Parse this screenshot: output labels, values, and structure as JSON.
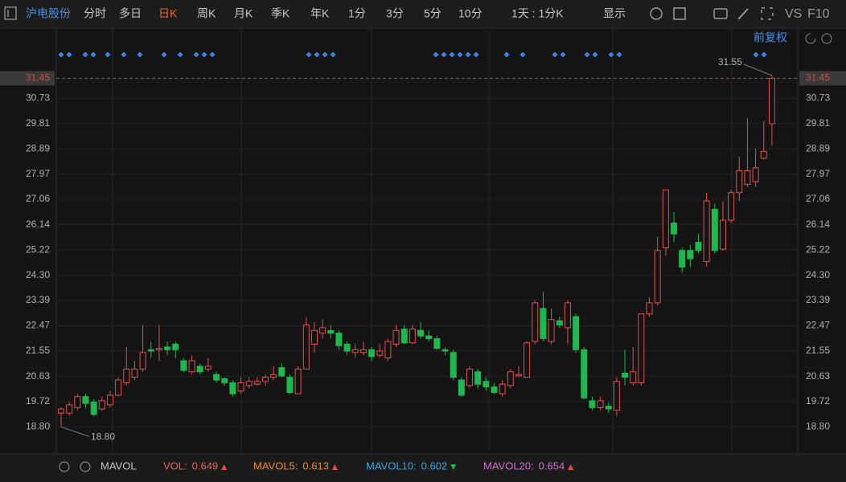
{
  "toolbar": {
    "stock_name": "沪电股份",
    "periods": [
      "分时",
      "多日",
      "日K",
      "周K",
      "月K",
      "季K",
      "年K",
      "1分",
      "3分",
      "5分",
      "10分"
    ],
    "active_index": 2,
    "range": "1天 : 1分K",
    "display": "显示",
    "vs": "VS",
    "f10": "F10"
  },
  "adjust": "前复权",
  "chart_data": {
    "type": "candlestick",
    "open": [
      19.3,
      19.3,
      19.5,
      19.9,
      19.7,
      19.45,
      19.6,
      19.95,
      20.4,
      20.6,
      20.9,
      21.6,
      21.6,
      21.7,
      21.8,
      21.2,
      20.8,
      21.0,
      20.9,
      20.7,
      20.55,
      20.4,
      20.1,
      20.3,
      20.35,
      20.45,
      20.6,
      20.95,
      20.6,
      20.0,
      20.9,
      21.8,
      22.2,
      22.3,
      22.2,
      21.8,
      21.5,
      21.5,
      21.6,
      21.4,
      21.3,
      21.8,
      22.35,
      21.85,
      22.3,
      22.1,
      22.0,
      21.6,
      21.5,
      20.5,
      20.3,
      20.8,
      20.45,
      20.25,
      20.0,
      20.3,
      20.65,
      20.6,
      21.9,
      23.1,
      21.9,
      22.65,
      22.4,
      22.8,
      21.6,
      19.75,
      19.5,
      19.55,
      19.4,
      20.75,
      20.4,
      20.4,
      22.9,
      23.3,
      25.3,
      26.2,
      25.2,
      25.2,
      25.5,
      24.8,
      26.7,
      25.25,
      26.3,
      27.3,
      27.6,
      27.7,
      28.55,
      29.8
    ],
    "high": [
      19.5,
      19.7,
      20.0,
      20.0,
      19.8,
      19.9,
      20.1,
      20.6,
      21.7,
      21.2,
      22.5,
      21.9,
      22.5,
      21.9,
      21.9,
      21.3,
      21.4,
      21.1,
      21.3,
      20.8,
      20.6,
      20.5,
      20.6,
      20.6,
      20.6,
      20.7,
      21.0,
      21.1,
      20.7,
      21.0,
      22.8,
      22.6,
      22.7,
      22.5,
      22.3,
      21.9,
      21.8,
      21.9,
      21.7,
      21.8,
      22.0,
      22.5,
      22.5,
      22.5,
      22.6,
      22.3,
      22.1,
      21.7,
      21.6,
      20.6,
      21.0,
      20.9,
      20.6,
      20.4,
      20.5,
      20.9,
      21.0,
      21.9,
      23.4,
      23.7,
      23.1,
      22.8,
      23.4,
      22.9,
      21.7,
      19.9,
      19.9,
      19.7,
      20.6,
      21.6,
      21.7,
      22.9,
      23.5,
      25.7,
      27.4,
      26.6,
      25.3,
      25.4,
      25.8,
      27.3,
      26.9,
      27.0,
      27.4,
      28.6,
      30.0,
      28.9,
      29.9,
      31.55
    ],
    "low": [
      18.8,
      19.2,
      19.4,
      19.5,
      19.2,
      19.4,
      19.5,
      19.9,
      20.3,
      20.5,
      20.8,
      21.3,
      21.2,
      21.4,
      21.3,
      20.8,
      20.7,
      20.7,
      20.8,
      20.4,
      20.3,
      19.9,
      20.0,
      20.2,
      20.3,
      20.3,
      20.5,
      20.6,
      20.0,
      20.0,
      20.9,
      21.5,
      22.0,
      22.0,
      21.6,
      21.4,
      21.3,
      21.4,
      21.2,
      21.3,
      21.2,
      21.7,
      21.8,
      21.8,
      22.0,
      21.9,
      21.6,
      21.4,
      20.5,
      19.9,
      20.2,
      20.2,
      20.1,
      20.0,
      19.9,
      20.2,
      20.6,
      20.6,
      21.8,
      21.9,
      21.8,
      22.4,
      21.8,
      21.5,
      19.8,
      19.4,
      19.4,
      19.3,
      19.2,
      20.3,
      20.3,
      20.3,
      22.8,
      23.2,
      25.0,
      25.5,
      24.4,
      24.6,
      25.1,
      24.6,
      25.1,
      25.2,
      26.2,
      27.0,
      27.5,
      27.5,
      28.5,
      29.0
    ],
    "close": [
      19.45,
      19.6,
      19.9,
      19.65,
      19.25,
      19.75,
      19.95,
      20.5,
      20.9,
      20.9,
      21.5,
      21.55,
      21.65,
      21.6,
      21.6,
      20.85,
      21.2,
      20.8,
      21.0,
      20.5,
      20.4,
      20.0,
      20.4,
      20.45,
      20.45,
      20.6,
      20.7,
      20.65,
      20.05,
      20.9,
      22.5,
      22.3,
      22.4,
      22.2,
      21.75,
      21.55,
      21.6,
      21.6,
      21.35,
      21.55,
      21.9,
      22.3,
      21.85,
      22.35,
      22.1,
      22.0,
      21.65,
      21.55,
      20.6,
      19.95,
      20.9,
      20.35,
      20.25,
      20.05,
      20.35,
      20.8,
      20.7,
      21.85,
      23.3,
      22.0,
      22.7,
      22.5,
      23.3,
      21.6,
      19.85,
      19.5,
      19.75,
      19.45,
      20.45,
      20.6,
      20.8,
      22.9,
      23.3,
      25.2,
      27.4,
      25.8,
      24.6,
      24.9,
      25.2,
      27.0,
      25.2,
      26.3,
      27.3,
      28.1,
      28.1,
      28.2,
      28.8,
      31.45
    ],
    "ylim": [
      17.82,
      33.27
    ],
    "yticks": [
      {
        "value": 18.8,
        "label": "18.80"
      },
      19.72,
      20.63,
      21.55,
      22.47,
      23.39,
      {
        "value": 24.3,
        "label": "24.30"
      },
      25.22,
      26.14,
      27.06,
      27.97,
      28.89,
      29.81,
      30.73
    ],
    "current_price": 31.45,
    "high_annotation": 31.55,
    "low_annotation": {
      "value": 18.8,
      "label": "18.80"
    },
    "up_color": "#e0504d",
    "down_color": "#1fb84f",
    "price_line_color": "#c8503f"
  },
  "indicator": {
    "name": "MAVOL",
    "items": [
      {
        "label": "VOL:",
        "value": 0.649,
        "color": "#e8625c",
        "trend": "up"
      },
      {
        "label": "MAVOL5:",
        "value": 0.613,
        "color": "#f08a24",
        "trend": "up"
      },
      {
        "label": "MAVOL10:",
        "value": 0.602,
        "color": "#2ea7e0",
        "trend": "down"
      },
      {
        "label": "MAVOL20:",
        "value": 0.654,
        "color": "#d66bd6",
        "trend": "up"
      }
    ]
  }
}
